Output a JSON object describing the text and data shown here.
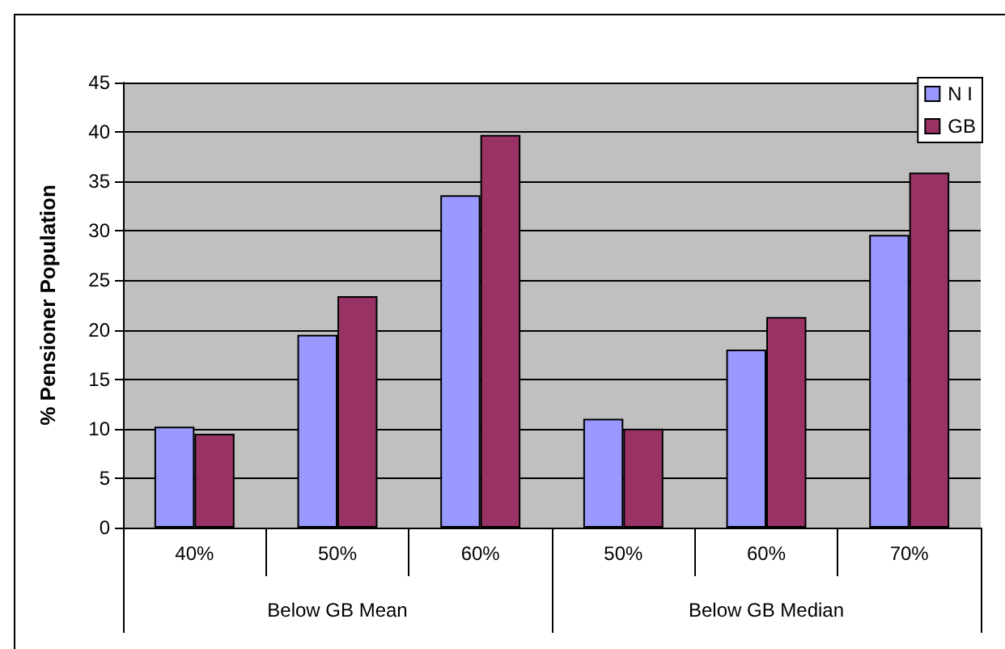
{
  "chart_data": {
    "type": "bar",
    "ylabel": "% Pensioner Population",
    "categories": [
      "40%",
      "50%",
      "60%",
      "50%",
      "60%",
      "70%"
    ],
    "annotations": [
      "Below GB Mean",
      "Below GB Median"
    ],
    "series": [
      {
        "name": "N I",
        "color": "#9999ff",
        "values": [
          10.2,
          19.5,
          33.6,
          11.0,
          18.0,
          29.6
        ]
      },
      {
        "name": "GB",
        "color": "#993366",
        "values": [
          9.5,
          23.4,
          39.7,
          10.0,
          21.3,
          35.9
        ]
      }
    ],
    "ylim": [
      0,
      45
    ],
    "yticks": [
      0,
      5,
      10,
      15,
      20,
      25,
      30,
      35,
      40,
      45
    ],
    "grid": "y",
    "legend": "top right"
  }
}
